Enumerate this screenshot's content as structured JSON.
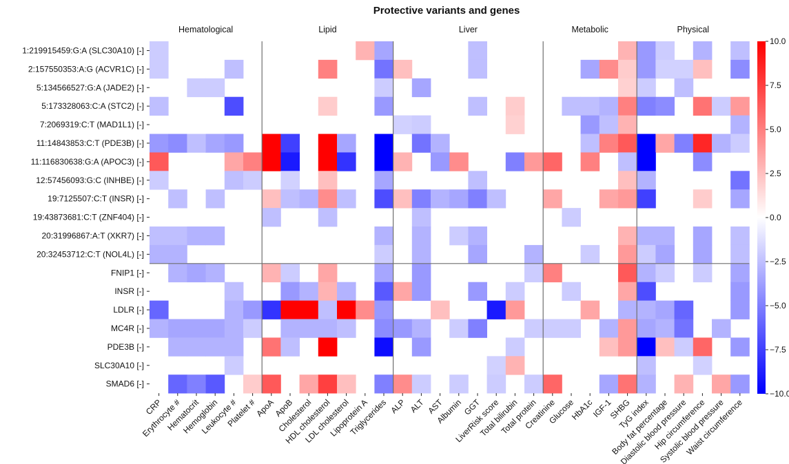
{
  "chart_data": {
    "type": "heatmap",
    "title": "Protective variants and genes",
    "color_scale": {
      "min": -10,
      "max": 10,
      "low_color": "#0000ff",
      "mid_color": "#ffffff",
      "high_color": "#ff0000",
      "ticks": [
        10.0,
        7.5,
        5.0,
        2.5,
        0.0,
        -2.5,
        -5.0,
        -7.5,
        -10.0
      ],
      "tick_labels": [
        "10.0",
        "7.5",
        "5.0",
        "2.5",
        "0.0",
        "−2.5",
        "−5.0",
        "−7.5",
        "−10.0"
      ]
    },
    "column_groups": [
      {
        "label": "Hematological",
        "span": 6
      },
      {
        "label": "Lipid",
        "span": 7
      },
      {
        "label": "Liver",
        "span": 8
      },
      {
        "label": "Metabolic",
        "span": 5
      },
      {
        "label": "Physical",
        "span": 6
      }
    ],
    "columns": [
      "CRP",
      "Erythrocyte #",
      "Hematocrit",
      "Hemoglobin",
      "Leukocyte #",
      "Platelet #",
      "ApoA",
      "ApoB",
      "Cholesterol",
      "HDL cholesterol",
      "LDL cholesterol",
      "Lipoprotein A",
      "Triglycerides",
      "ALP",
      "ALT",
      "AST",
      "Albumin",
      "GGT",
      "LiverRisk score",
      "Total bilirubin",
      "Total protein",
      "Creatinine",
      "Glucose",
      "HbA1c",
      "IGF-1",
      "SHBG",
      "TyG index",
      "Body fat percentage",
      "Diastolic blood pressure",
      "Hip circumference",
      "Systolic blood pressure",
      "Waist circumference"
    ],
    "rows": [
      "1:219915459:G:A (SLC30A10) [-]",
      "2:157550353:A:G (ACVR1C) [-]",
      "5:134566527:G:A (JADE2) [-]",
      "5:173328063:C:A (STC2) [-]",
      "7:2069319:C:T (MAD1L1) [-]",
      "11:14843853:C:T (PDE3B) [-]",
      "11:116830638:G:A (APOC3) [-]",
      "12:57456093:G:C (INHBE) [-]",
      "19:7125507:C:T (INSR) [-]",
      "19:43873681:C:T (ZNF404) [-]",
      "20:31996867:A:T (XKR7) [-]",
      "20:32453712:C:T (NOL4L) [-]",
      "FNIP1 [-]",
      "INSR [-]",
      "LDLR [-]",
      "MC4R [-]",
      "PDE3B [-]",
      "SLC30A10 [-]",
      "SMAD6 [-]"
    ],
    "row_group_sizes": [
      12,
      7
    ],
    "values": [
      [
        -2,
        0,
        0,
        0,
        0,
        0,
        0,
        0,
        0,
        0,
        0,
        3,
        -3.5,
        0,
        0,
        0,
        0,
        -2.5,
        0,
        0,
        0,
        0,
        0,
        0,
        0,
        3,
        -4,
        -2,
        0,
        -3,
        0,
        -2.5
      ],
      [
        -2,
        0,
        0,
        0,
        -2.5,
        0,
        0,
        0,
        0,
        5,
        0,
        0,
        -5.5,
        2.5,
        0,
        0,
        0,
        -2.5,
        0,
        0,
        0,
        0,
        0,
        -3.5,
        4.5,
        2,
        -4,
        -1.8,
        -1.8,
        2.5,
        0,
        -4.5
      ],
      [
        0,
        0,
        -2,
        -2,
        0,
        0,
        0,
        0,
        0,
        0,
        0,
        0,
        -2,
        0,
        -3.5,
        0,
        0,
        0,
        0,
        0,
        0,
        0,
        0,
        0,
        0,
        1.8,
        -2,
        0,
        -2.5,
        0,
        0,
        0
      ],
      [
        -2.5,
        0,
        0,
        0,
        -7,
        0,
        0,
        0,
        0,
        2,
        0,
        0,
        -4,
        0,
        0,
        0,
        0,
        -2.5,
        0,
        2,
        0,
        0,
        -2.5,
        -2.5,
        -3,
        5,
        -5,
        -4.5,
        0,
        5.5,
        -2,
        4
      ],
      [
        0,
        0,
        0,
        0,
        0,
        0,
        0,
        0,
        0,
        0,
        0,
        0,
        0,
        -1.8,
        -2,
        0,
        0,
        0,
        0,
        1.8,
        0,
        0,
        0,
        -4,
        -2.5,
        3,
        0,
        0,
        0,
        0,
        0,
        -3
      ],
      [
        -4,
        -4.5,
        -2.5,
        -3.5,
        -4,
        0,
        10,
        -7.5,
        0,
        10,
        -3.5,
        0,
        -10,
        0,
        -5.5,
        -3,
        0,
        0,
        0,
        0,
        0,
        0,
        0,
        -2.5,
        5,
        6.5,
        -10,
        3.5,
        -5,
        8.5,
        -3,
        -2
      ],
      [
        6.5,
        0,
        0,
        0,
        3.5,
        5,
        10,
        -9,
        0,
        10,
        -8,
        0,
        -10,
        3,
        0,
        -4,
        4.5,
        0,
        0,
        -5,
        4,
        6,
        0,
        5,
        0,
        -2.5,
        -10,
        0,
        0,
        -4.5,
        0,
        0
      ],
      [
        -2,
        0,
        0,
        0,
        -2.5,
        -2,
        0,
        -1.8,
        0,
        2.5,
        0,
        0,
        -3.5,
        0,
        0,
        0,
        0,
        -2.5,
        0,
        0,
        0,
        0,
        0,
        0,
        0,
        2.5,
        -3,
        0,
        0,
        0,
        0,
        -5.5
      ],
      [
        0,
        -2.5,
        0,
        -2.5,
        0,
        0,
        2.5,
        -2.5,
        -3,
        4.5,
        -2.5,
        0,
        -7,
        2.5,
        -5,
        -3,
        -3.5,
        -5,
        -2.5,
        0,
        0,
        3.5,
        0,
        0,
        3.5,
        4,
        -7.5,
        0,
        0,
        2,
        0,
        -3.5
      ],
      [
        0,
        0,
        0,
        0,
        0,
        0,
        -2.5,
        0,
        0,
        -2.5,
        0,
        0,
        0,
        0,
        -2.5,
        0,
        0,
        0,
        0,
        0,
        0,
        0,
        -2,
        0,
        0,
        0,
        0,
        0,
        0,
        0,
        0,
        0
      ],
      [
        -2.5,
        -2.5,
        -3,
        -3,
        0,
        0,
        0,
        0,
        0,
        0,
        0,
        0,
        -3,
        0,
        -3,
        0,
        -2,
        -3,
        0,
        0,
        0,
        0,
        0,
        0,
        0,
        3,
        -3,
        -3,
        0,
        -3.5,
        0,
        -2.5
      ],
      [
        -3,
        -3,
        0,
        0,
        0,
        0,
        0,
        0,
        0,
        0,
        0,
        0,
        -2,
        0,
        -3,
        0,
        0,
        -3.5,
        0,
        0,
        -3,
        0,
        0,
        -2,
        0,
        4,
        -2,
        -3.5,
        0,
        -3.5,
        0,
        -2.5
      ],
      [
        0,
        -3,
        -3.5,
        -3,
        0,
        0,
        3,
        -2,
        0,
        3.5,
        0,
        0,
        -3.5,
        0,
        -4,
        0,
        0,
        0,
        0,
        0,
        -2,
        5,
        0,
        0,
        0,
        6.5,
        -3,
        -2,
        0,
        -2,
        0,
        -3.5
      ],
      [
        0,
        0,
        0,
        0,
        -2.5,
        0,
        0,
        -4,
        -3,
        3,
        -3,
        0,
        -6.5,
        3.5,
        -4,
        0,
        0,
        -4,
        0,
        -2,
        0,
        0,
        -2,
        0,
        0,
        3.5,
        -7,
        0,
        0,
        0,
        0,
        -4
      ],
      [
        -6,
        0,
        0,
        0,
        -3,
        -4,
        -8,
        10,
        10,
        -2.5,
        10,
        4.5,
        -4,
        0,
        0,
        2.5,
        0,
        0,
        -9,
        4,
        0,
        0,
        0,
        3.5,
        0,
        -3,
        -3,
        -3.5,
        -6,
        0,
        0,
        -4
      ],
      [
        -3,
        -3.5,
        -3.5,
        -3.5,
        -3,
        -2,
        0,
        -3,
        -3,
        -3,
        -2.5,
        0,
        -4.5,
        -4,
        -3,
        0,
        -2,
        -5,
        0,
        0,
        -2,
        -2,
        -2,
        0,
        -3,
        4,
        -3.5,
        -3,
        -5.5,
        0,
        -3,
        0
      ],
      [
        0,
        -3,
        -3,
        -3,
        -3,
        0,
        5.5,
        -2.5,
        0,
        10,
        0,
        0,
        -9.5,
        0,
        -4,
        0,
        0,
        0,
        0,
        -2,
        0,
        0,
        0,
        0,
        2.5,
        4,
        -10,
        2.5,
        -2,
        6,
        0,
        -4
      ],
      [
        0,
        0,
        0,
        0,
        -2,
        0,
        0,
        0,
        0,
        0,
        0,
        0,
        0,
        0,
        0,
        0,
        0,
        0,
        -1.8,
        3,
        0,
        0,
        0,
        0,
        0,
        0,
        -2.5,
        0,
        0,
        -1.8,
        0,
        0
      ],
      [
        0,
        -6,
        -5,
        -6.5,
        0,
        2,
        6.5,
        0,
        3.5,
        7.5,
        2.5,
        0,
        -5,
        4.5,
        -2,
        0,
        -2,
        0,
        -2,
        0,
        -2,
        6,
        0,
        0,
        -3.5,
        5.5,
        -3,
        0,
        3,
        0,
        3.5,
        -4
      ]
    ]
  }
}
